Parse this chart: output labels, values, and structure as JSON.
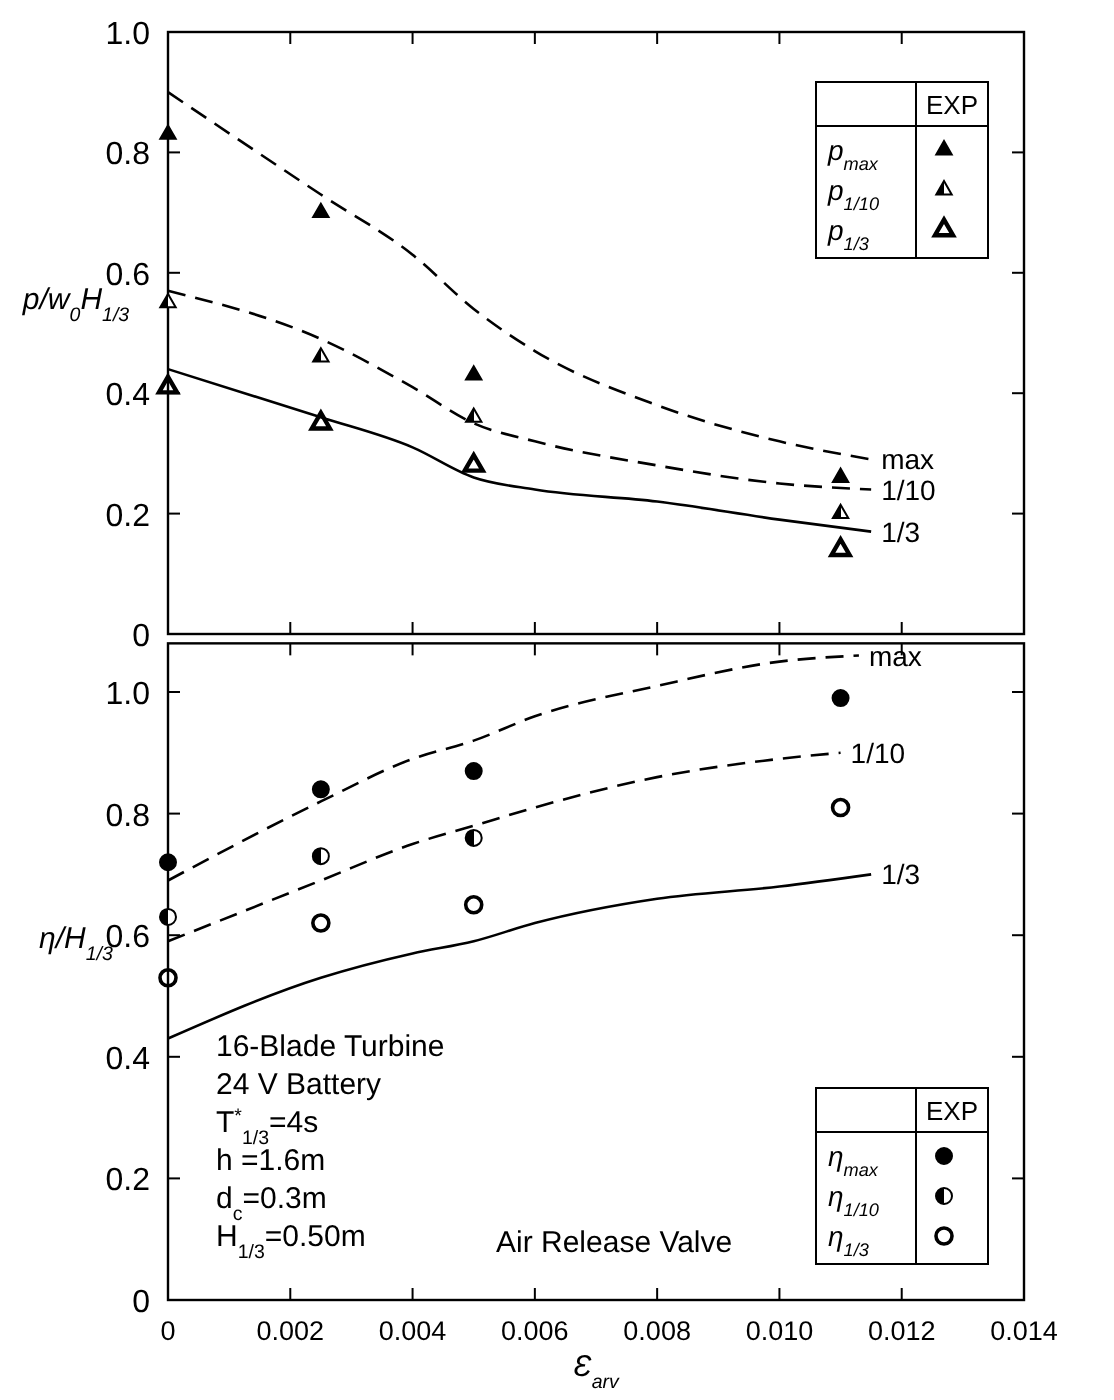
{
  "chart_data": [
    {
      "type": "line",
      "ylabel": "p/w$_{0}$H$_{1/3}$",
      "legend_title": "EXP",
      "legend": "top right",
      "tick_labels": "y",
      "grid": false,
      "xlim": [
        0,
        0.014
      ],
      "ylim": [
        0,
        1.0
      ],
      "xticks": [
        0,
        0.002,
        0.004,
        0.006,
        0.008,
        0.01,
        0.012,
        0.014
      ],
      "yticks": [
        0,
        {
          "value": 0.2,
          "label": "0.2"
        },
        {
          "value": 0.4,
          "label": "0.4"
        },
        {
          "value": 0.6,
          "label": "0.6"
        },
        {
          "value": 0.8,
          "label": "0.8"
        },
        {
          "value": 1.0,
          "label": "1.0"
        }
      ],
      "series": [
        {
          "name": "max",
          "line_style": "dashed",
          "color": "#000000",
          "x": [
            0,
            0.0025,
            0.004,
            0.005,
            0.006,
            0.008,
            0.01,
            0.0115
          ],
          "values": [
            0.9,
            0.73,
            0.63,
            0.54,
            0.47,
            0.38,
            0.32,
            0.29
          ]
        },
        {
          "name": "1/10",
          "line_style": "dashed",
          "color": "#000000",
          "x": [
            0,
            0.0025,
            0.004,
            0.005,
            0.006,
            0.008,
            0.01,
            0.0115
          ],
          "values": [
            0.57,
            0.49,
            0.41,
            0.35,
            0.32,
            0.28,
            0.25,
            0.24
          ]
        },
        {
          "name": "1/3",
          "line_style": "solid",
          "color": "#000000",
          "x": [
            0,
            0.0025,
            0.004,
            0.005,
            0.006,
            0.008,
            0.01,
            0.0115
          ],
          "values": [
            0.44,
            0.36,
            0.31,
            0.26,
            0.24,
            0.22,
            0.19,
            0.17
          ]
        },
        {
          "name": "p$_{max}$",
          "type": "scatter",
          "marker": "triangle",
          "color": "#000000",
          "x": [
            0,
            0.0025,
            0.005,
            0.011
          ],
          "values": [
            0.83,
            0.7,
            0.43,
            0.26
          ]
        },
        {
          "name": "p$_{1/10}$",
          "type": "scatter",
          "marker": "triangle",
          "color": "#000000",
          "x": [
            0,
            0.0025,
            0.005,
            0.011
          ],
          "values": [
            0.55,
            0.46,
            0.36,
            0.2
          ]
        },
        {
          "name": "p$_{1/3}$",
          "type": "scatter",
          "marker": "triangle",
          "color": "#000000",
          "x": [
            0,
            0.0025,
            0.005,
            0.011
          ],
          "values": [
            0.41,
            0.35,
            0.28,
            0.14
          ]
        }
      ]
    },
    {
      "type": "line",
      "ylabel": "η/H$_{1/3}$",
      "xlabel": "Ɛ$_{arv}$",
      "legend_title": "EXP",
      "legend": "bottom right",
      "grid": false,
      "xlim": [
        0,
        0.014
      ],
      "ylim": [
        0,
        1.08
      ],
      "xticks": [
        0,
        0.002,
        0.004,
        0.006,
        0.008,
        {
          "value": 0.01,
          "label": "0.010"
        },
        {
          "value": 0.012,
          "label": "0.012"
        },
        {
          "value": 0.014,
          "label": "0.014"
        }
      ],
      "yticks": [
        0,
        {
          "value": 0.2,
          "label": "0.2"
        },
        {
          "value": 0.4,
          "label": "0.4"
        },
        {
          "value": 0.6,
          "label": "0.6"
        },
        {
          "value": 0.8,
          "label": "0.8"
        },
        {
          "value": 1.0,
          "label": "1.0"
        }
      ],
      "annotations": [
        "16-Blade Turbine",
        "24 V Battery",
        "T$^{*}$$_{1/3}$=4s",
        "h =1.6m",
        "d$_{c}$=0.3m",
        "H$_{1/3}$=0.50m",
        "Air Release Valve"
      ],
      "series": [
        {
          "name": "max",
          "line_style": "dashed",
          "color": "#000000",
          "x": [
            0,
            0.0025,
            0.004,
            0.005,
            0.006,
            0.008,
            0.01,
            0.0113
          ],
          "values": [
            0.69,
            0.82,
            0.89,
            0.92,
            0.96,
            1.01,
            1.05,
            1.06
          ]
        },
        {
          "name": "1/10",
          "line_style": "dashed",
          "color": "#000000",
          "x": [
            0,
            0.0025,
            0.004,
            0.005,
            0.006,
            0.008,
            0.01,
            0.011
          ],
          "values": [
            0.59,
            0.69,
            0.75,
            0.78,
            0.81,
            0.86,
            0.89,
            0.9
          ]
        },
        {
          "name": "1/3",
          "line_style": "solid",
          "color": "#000000",
          "x": [
            0,
            0.0025,
            0.004,
            0.005,
            0.006,
            0.008,
            0.01,
            0.0115
          ],
          "values": [
            0.43,
            0.53,
            0.57,
            0.59,
            0.62,
            0.66,
            0.68,
            0.7
          ]
        },
        {
          "name": "η$_{max}$",
          "type": "scatter",
          "marker": "circle",
          "color": "#000000",
          "x": [
            0,
            0.0025,
            0.005,
            0.011
          ],
          "values": [
            0.72,
            0.84,
            0.87,
            0.99
          ]
        },
        {
          "name": "η$_{1/10}$",
          "type": "scatter",
          "marker": "circle",
          "color": "#000000",
          "x": [
            0,
            0.0025,
            0.005
          ],
          "values": [
            0.63,
            0.73,
            0.76
          ]
        },
        {
          "name": "η$_{1/3}$",
          "type": "scatter",
          "marker": "circle",
          "color": "#000000",
          "x": [
            0,
            0.0025,
            0.005,
            0.011
          ],
          "values": [
            0.53,
            0.62,
            0.65,
            0.81
          ]
        }
      ]
    }
  ]
}
